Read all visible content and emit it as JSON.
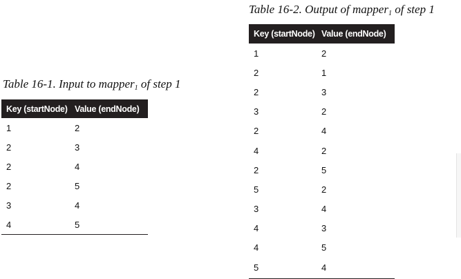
{
  "table_right": {
    "caption_prefix": "Table 16-2. Output of mapper",
    "caption_sub": "1",
    "caption_suffix": " of step 1",
    "headers": [
      "Key (startNode)",
      "Value (endNode)"
    ],
    "rows": [
      [
        "1",
        "2"
      ],
      [
        "2",
        "1"
      ],
      [
        "2",
        "3"
      ],
      [
        "3",
        "2"
      ],
      [
        "2",
        "4"
      ],
      [
        "4",
        "2"
      ],
      [
        "2",
        "5"
      ],
      [
        "5",
        "2"
      ],
      [
        "3",
        "4"
      ],
      [
        "4",
        "3"
      ],
      [
        "4",
        "5"
      ],
      [
        "5",
        "4"
      ]
    ]
  },
  "table_left": {
    "caption_prefix": "Table 16-1. Input to mapper",
    "caption_sub": "1",
    "caption_suffix": " of step 1",
    "headers": [
      "Key (startNode)",
      "Value (endNode)"
    ],
    "rows": [
      [
        "1",
        "2"
      ],
      [
        "2",
        "3"
      ],
      [
        "2",
        "4"
      ],
      [
        "2",
        "5"
      ],
      [
        "3",
        "4"
      ],
      [
        "4",
        "5"
      ]
    ]
  }
}
